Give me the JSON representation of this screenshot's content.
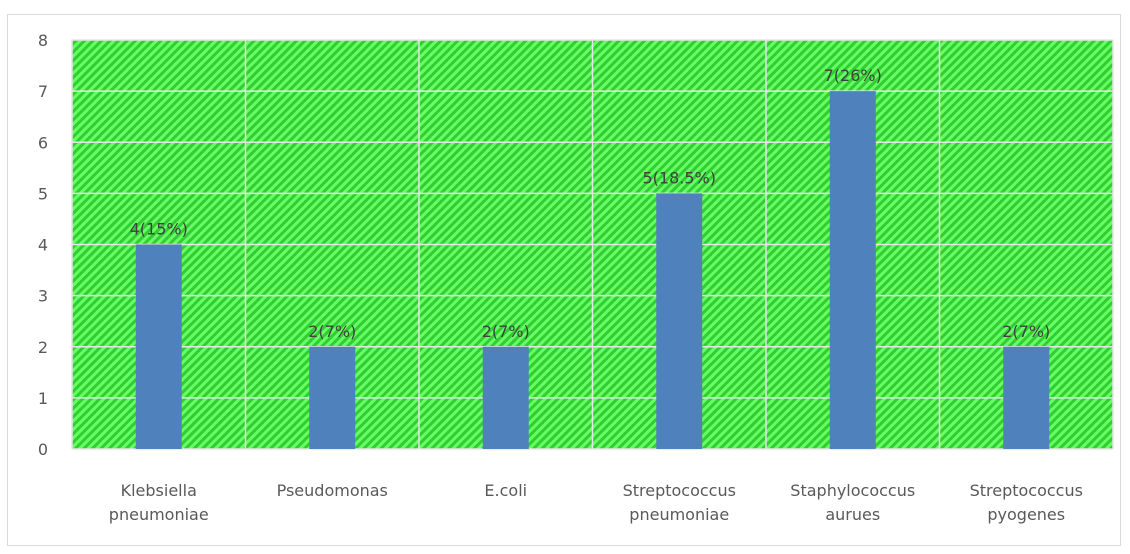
{
  "chart_data": {
    "type": "bar",
    "categories": [
      [
        "Klebsiella",
        "pneumoniae"
      ],
      [
        "Pseudomonas"
      ],
      [
        "E.coli"
      ],
      [
        "Streptococcus",
        "pneumoniae"
      ],
      [
        "Staphylococcus",
        "aurues"
      ],
      [
        "Streptococcus",
        "pyogenes"
      ]
    ],
    "values": [
      4,
      2,
      2,
      5,
      7,
      2
    ],
    "data_labels": [
      "4(15%)",
      "2(7%)",
      "2(7%)",
      "5(18.5%)",
      "7(26%)",
      "2(7%)"
    ],
    "yticks": [
      "0",
      "1",
      "2",
      "3",
      "4",
      "5",
      "6",
      "7",
      "8"
    ],
    "ylim": [
      0,
      8
    ],
    "grid": true,
    "colors": {
      "bar": "#4f81bd",
      "plot_background": "#33cc33",
      "plot_hatch": "#66ff66",
      "gridline": "#e6e6e6"
    }
  }
}
